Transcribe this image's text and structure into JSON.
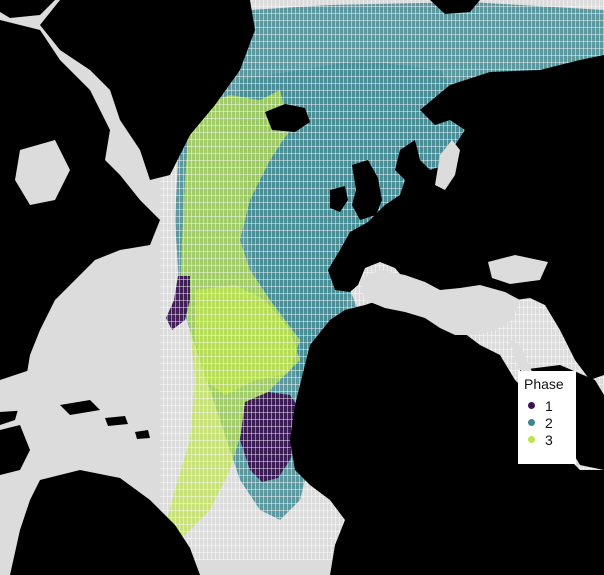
{
  "legend": {
    "title": "Phase",
    "items": [
      {
        "label": "1",
        "color": "#3a1552"
      },
      {
        "label": "2",
        "color": "#3c8791"
      },
      {
        "label": "3",
        "color": "#bfe251"
      }
    ]
  },
  "colors": {
    "ocean": "#dcdcdc",
    "land": "#000000",
    "phase1": "#3a1552",
    "phase2": "#3c8791",
    "phase3": "#bfe251"
  }
}
